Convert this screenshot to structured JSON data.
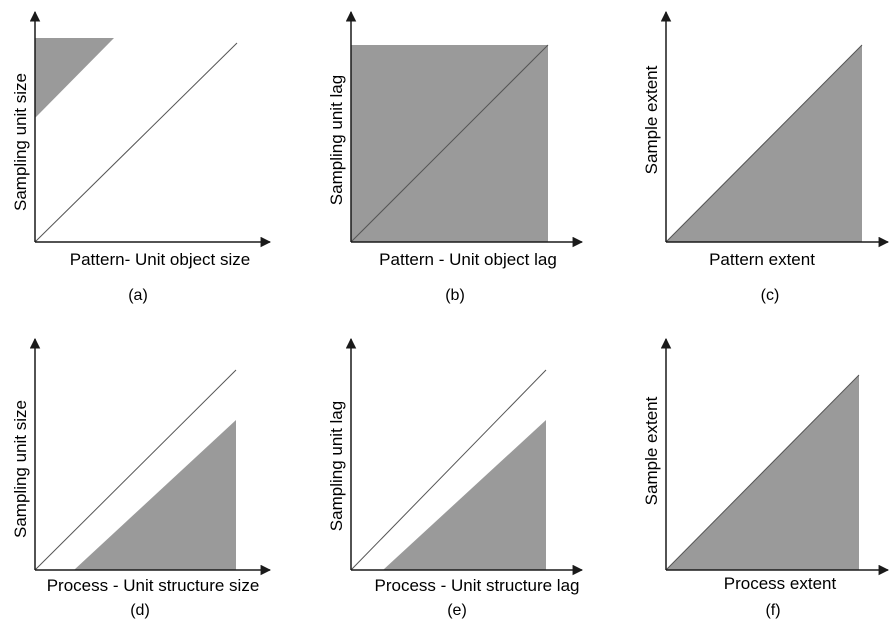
{
  "panels": [
    {
      "id": "a",
      "tag": "(a)",
      "xlabel": "Pattern- Unit object size",
      "ylabel": "Sampling unit size",
      "shaded_region": "small triangle in top-left corner above the diagonal",
      "diagonal": true
    },
    {
      "id": "b",
      "tag": "(b)",
      "xlabel": "Pattern - Unit object lag",
      "ylabel": "Sampling unit lag",
      "shaded_region": "entire square",
      "diagonal": true
    },
    {
      "id": "c",
      "tag": "(c)",
      "xlabel": "Pattern extent",
      "ylabel": "Sample extent",
      "shaded_region": "lower-right triangle below the diagonal",
      "diagonal": true
    },
    {
      "id": "d",
      "tag": "(d)",
      "xlabel": "Process - Unit structure size",
      "ylabel": "Sampling unit size",
      "shaded_region": "triangle below a line offset beneath the diagonal",
      "diagonal": true
    },
    {
      "id": "e",
      "tag": "(e)",
      "xlabel": "Process - Unit structure lag",
      "ylabel": "Sampling unit lag",
      "shaded_region": "triangle below a line offset beneath the diagonal",
      "diagonal": true
    },
    {
      "id": "f",
      "tag": "(f)",
      "xlabel": "Process extent",
      "ylabel": "Sample extent",
      "shaded_region": "lower-right triangle below the diagonal",
      "diagonal": true
    }
  ],
  "colors": {
    "fill": "#9a9a9a",
    "axis": "#1a1a1a",
    "diagonal": "#555555",
    "background": "#ffffff"
  }
}
